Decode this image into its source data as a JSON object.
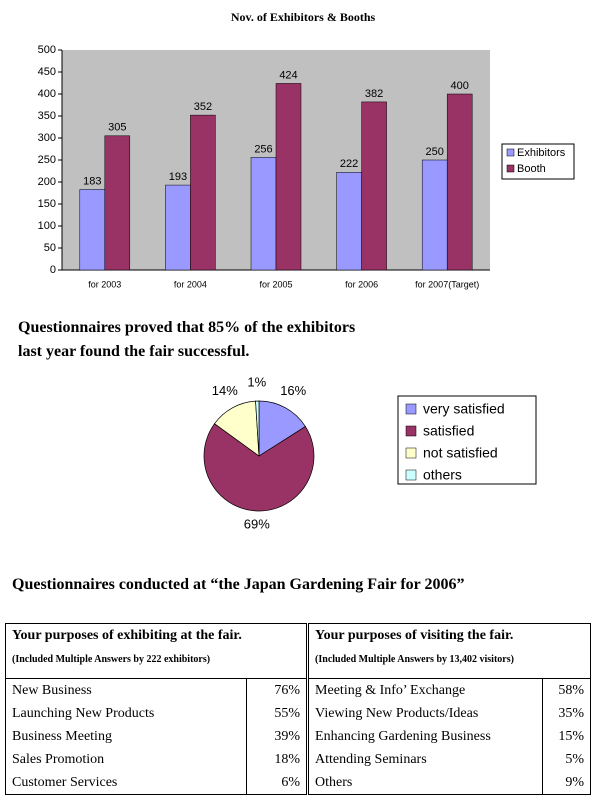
{
  "chart_data": [
    {
      "type": "bar",
      "title": "Nov. of Exhibitors & Booths",
      "categories": [
        "for 2003",
        "for 2004",
        "for 2005",
        "for 2006",
        "for 2007(Target)"
      ],
      "series": [
        {
          "name": "Exhibitors",
          "color": "#9999ff",
          "values": [
            183,
            193,
            256,
            222,
            250
          ]
        },
        {
          "name": "Booth",
          "color": "#993366",
          "values": [
            305,
            352,
            424,
            382,
            400
          ]
        }
      ],
      "ylim": [
        0,
        500
      ],
      "yticks": [
        0,
        50,
        100,
        150,
        200,
        250,
        300,
        350,
        400,
        450,
        500
      ],
      "background": "#c0c0c0"
    },
    {
      "type": "pie",
      "categories": [
        "very satisfied",
        "satisfied",
        "not satisfied",
        "others"
      ],
      "values": [
        16,
        69,
        14,
        1
      ],
      "value_labels": [
        "16%",
        "69%",
        "14%",
        "1%"
      ],
      "colors": [
        "#9999ff",
        "#993366",
        "#ffffcc",
        "#ccffff"
      ]
    }
  ],
  "summary": "Questionnaires proved that 85% of the exhibitors last year found the fair successful.",
  "heading": "Questionnaires conducted at “the Japan Gardening Fair for 2006”",
  "table": {
    "columns": [
      {
        "title": "Your purposes of exhibiting at the fair.",
        "note": "(Included Multiple Answers by 222 exhibitors)",
        "rows": [
          [
            "New Business",
            "76%"
          ],
          [
            "Launching New Products",
            "55%"
          ],
          [
            "Business Meeting",
            "39%"
          ],
          [
            "Sales Promotion",
            "18%"
          ],
          [
            "Customer Services",
            "6%"
          ]
        ]
      },
      {
        "title": "Your purposes of visiting the fair.",
        "note": "(Included Multiple Answers by 13,402 visitors)",
        "rows": [
          [
            "Meeting & Info’ Exchange",
            "58%"
          ],
          [
            "Viewing New Products/Ideas",
            "35%"
          ],
          [
            "Enhancing Gardening Business",
            "15%"
          ],
          [
            "Attending Seminars",
            "5%"
          ],
          [
            "Others",
            "9%"
          ]
        ]
      }
    ]
  }
}
